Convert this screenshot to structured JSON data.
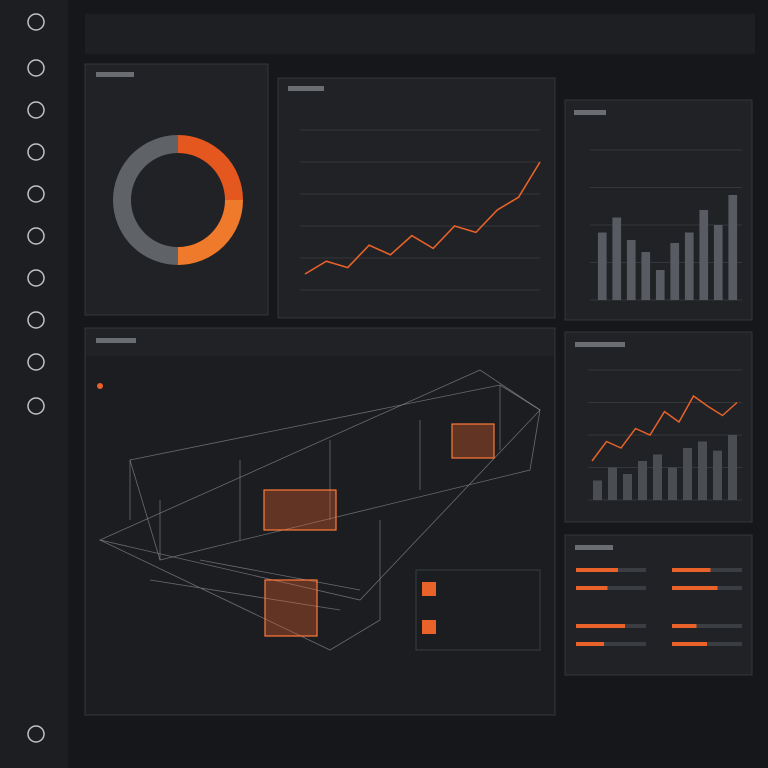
{
  "donut": {
    "type": "pie",
    "values": [
      25,
      25,
      50
    ],
    "colors": [
      "#e4571f",
      "#f07a2c",
      "#5f6266"
    ]
  },
  "trend": {
    "type": "line",
    "values": [
      10,
      18,
      14,
      28,
      22,
      34,
      26,
      40,
      36,
      50,
      58,
      80
    ],
    "ylim": [
      0,
      100
    ],
    "color": "#e8622a"
  },
  "bars": {
    "type": "bar",
    "values": [
      45,
      55,
      40,
      32,
      20,
      38,
      45,
      60,
      50,
      70
    ],
    "ylim": [
      0,
      100
    ],
    "color": "#585b61"
  },
  "combo": {
    "type": "combo",
    "bars": [
      15,
      25,
      20,
      30,
      35,
      25,
      40,
      45,
      38,
      50
    ],
    "line": [
      30,
      45,
      40,
      55,
      50,
      68,
      60,
      80,
      72,
      65,
      75
    ],
    "ylim": [
      0,
      100
    ],
    "bar_color": "#4a4d52",
    "line_color": "#e8622a"
  },
  "progress": {
    "type": "progress",
    "values": [
      60,
      45,
      70,
      40,
      55,
      65,
      35,
      50
    ],
    "ylim": [
      0,
      100
    ],
    "color": "#e8622a"
  }
}
